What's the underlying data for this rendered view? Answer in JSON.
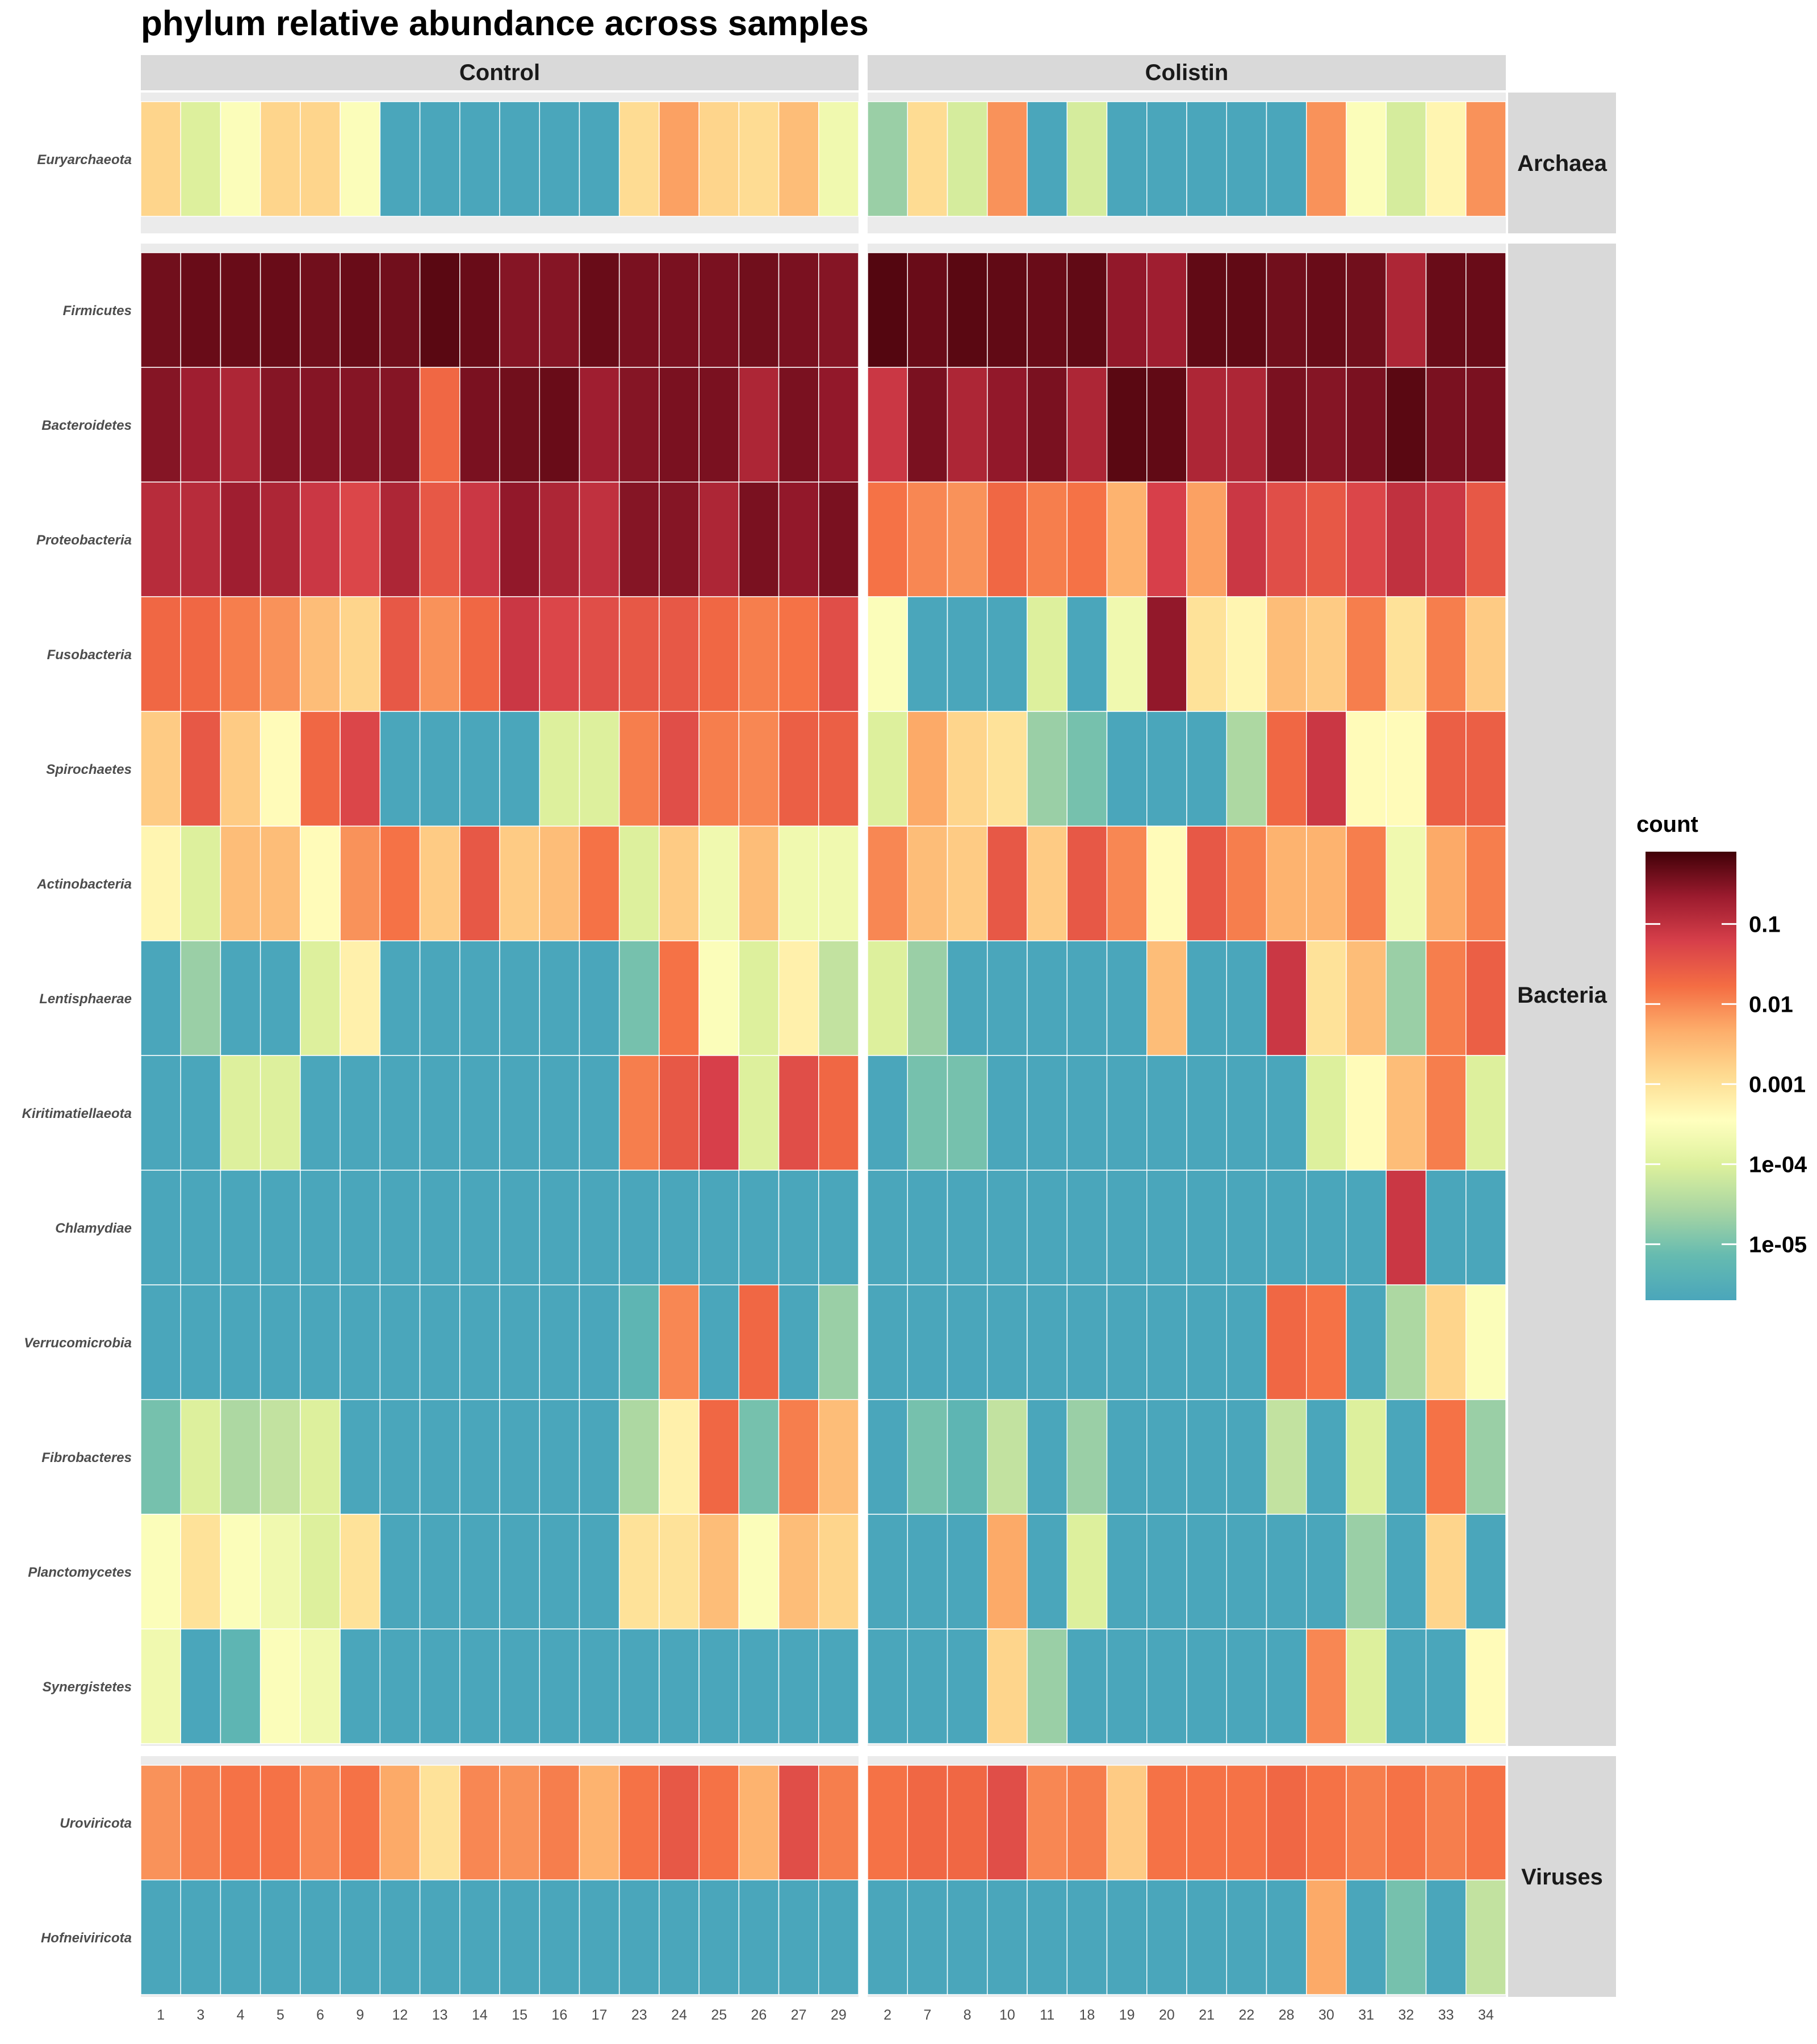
{
  "chart_data": {
    "type": "heatmap",
    "title": "phylum  relative abundance across samples",
    "xlabel": "",
    "ylabel": "",
    "color_scale": {
      "type": "log10",
      "title": "count",
      "tick_labels": [
        "0.1",
        "0.01",
        "0.001",
        "1e-04",
        "1e-05"
      ],
      "tick_values": [
        0.1,
        0.01,
        0.001,
        0.0001,
        1e-05
      ],
      "range": [
        2e-06,
        0.8
      ],
      "colors": [
        "#4aa6bb",
        "#66bbb0",
        "#a8d5a3",
        "#dcf09c",
        "#ffffbe",
        "#fedb91",
        "#fdae6b",
        "#f46d43",
        "#d73f4a",
        "#9b1b2e",
        "#400007"
      ]
    },
    "columns": [
      {
        "label": "Control",
        "samples": [
          "1",
          "3",
          "4",
          "5",
          "6",
          "9",
          "12",
          "13",
          "14",
          "15",
          "16",
          "17",
          "23",
          "24",
          "25",
          "26",
          "27",
          "29"
        ]
      },
      {
        "label": "Colistin",
        "samples": [
          "2",
          "7",
          "8",
          "10",
          "11",
          "18",
          "19",
          "20",
          "21",
          "22",
          "28",
          "30",
          "31",
          "32",
          "33",
          "34"
        ]
      }
    ],
    "rows": [
      {
        "label": "Archaea",
        "taxa": [
          {
            "name": "Euryarchaeota",
            "control": [
              0.0015,
              0.0001,
              0.0003,
              0.0015,
              0.0015,
              0.0003,
              0,
              0,
              0,
              0,
              0,
              0,
              0.0012,
              0.006,
              0.0015,
              0.0012,
              0.003,
              0.0002
            ],
            "colistin": [
              2e-05,
              0.0012,
              8e-05,
              0.008,
              0,
              8e-05,
              0,
              0,
              0,
              0,
              0,
              0.008,
              0.0003,
              8e-05,
              0.0005,
              0.008
            ]
          },
          {
            "name": "Euryarchaeota_pad",
            "skip": true,
            "control": [],
            "colistin": []
          }
        ]
      },
      {
        "label": "Bacteria",
        "taxa": [
          {
            "name": "Firmicutes",
            "control": [
              0.4,
              0.45,
              0.45,
              0.45,
              0.4,
              0.45,
              0.4,
              0.55,
              0.45,
              0.3,
              0.3,
              0.45,
              0.35,
              0.35,
              0.35,
              0.4,
              0.35,
              0.3
            ],
            "colistin": [
              0.6,
              0.45,
              0.55,
              0.5,
              0.45,
              0.5,
              0.25,
              0.2,
              0.5,
              0.5,
              0.4,
              0.45,
              0.4,
              0.15,
              0.45,
              0.45
            ]
          },
          {
            "name": "Bacteroidetes",
            "control": [
              0.3,
              0.2,
              0.15,
              0.3,
              0.3,
              0.3,
              0.3,
              0.02,
              0.35,
              0.4,
              0.45,
              0.2,
              0.3,
              0.35,
              0.35,
              0.15,
              0.35,
              0.25
            ],
            "colistin": [
              0.08,
              0.35,
              0.15,
              0.25,
              0.35,
              0.15,
              0.55,
              0.5,
              0.15,
              0.15,
              0.35,
              0.3,
              0.35,
              0.55,
              0.35,
              0.35
            ]
          },
          {
            "name": "Proteobacteria",
            "control": [
              0.12,
              0.12,
              0.2,
              0.15,
              0.08,
              0.05,
              0.15,
              0.03,
              0.08,
              0.25,
              0.15,
              0.1,
              0.3,
              0.3,
              0.15,
              0.35,
              0.25,
              0.35
            ],
            "colistin": [
              0.015,
              0.01,
              0.008,
              0.02,
              0.012,
              0.015,
              0.004,
              0.06,
              0.006,
              0.08,
              0.04,
              0.03,
              0.05,
              0.1,
              0.08,
              0.03
            ]
          },
          {
            "name": "Fusobacteria",
            "control": [
              0.02,
              0.02,
              0.012,
              0.008,
              0.003,
              0.0015,
              0.03,
              0.008,
              0.02,
              0.08,
              0.05,
              0.04,
              0.03,
              0.03,
              0.02,
              0.012,
              0.015,
              0.04
            ],
            "colistin": [
              0.0003,
              0,
              0,
              0,
              0.0001,
              0,
              0.0002,
              0.25,
              0.001,
              0.0005,
              0.003,
              0.002,
              0.012,
              0.001,
              0.012,
              0.002
            ]
          },
          {
            "name": "Spirochaetes",
            "control": [
              0.002,
              0.03,
              0.002,
              0.0004,
              0.02,
              0.05,
              0,
              0,
              0,
              0,
              0.0001,
              0.0001,
              0.012,
              0.04,
              0.012,
              0.01,
              0.025,
              0.025
            ],
            "colistin": [
              0.0001,
              0.005,
              0.0015,
              0.001,
              2e-05,
              1e-05,
              0,
              0,
              0,
              3e-05,
              0.02,
              0.08,
              0.0004,
              0.0004,
              0.025,
              0.025
            ]
          },
          {
            "name": "Actinobacteria",
            "control": [
              0.0005,
              0.0001,
              0.003,
              0.003,
              0.0004,
              0.008,
              0.015,
              0.002,
              0.03,
              0.002,
              0.003,
              0.015,
              0.0001,
              0.002,
              0.0002,
              0.003,
              0.0002,
              0.0002
            ],
            "colistin": [
              0.01,
              0.003,
              0.002,
              0.03,
              0.002,
              0.03,
              0.01,
              0.0004,
              0.03,
              0.012,
              0.004,
              0.004,
              0.012,
              0.0002,
              0.005,
              0.012
            ]
          },
          {
            "name": "Lentisphaerae",
            "control": [
              0,
              2e-05,
              0,
              0,
              0.0001,
              0.0006,
              0,
              0,
              0,
              0,
              0,
              0,
              1e-05,
              0.015,
              0.0003,
              0.0001,
              0.0006,
              5e-05
            ],
            "colistin": [
              0.0001,
              2e-05,
              0,
              0,
              0,
              0,
              0,
              0.003,
              0,
              0,
              0.08,
              0.001,
              0.003,
              2e-05,
              0.012,
              0.025
            ]
          },
          {
            "name": "Kiritimatiellaeota",
            "control": [
              0,
              0,
              0.0001,
              0.0001,
              0,
              0,
              0,
              0,
              0,
              0,
              0,
              0,
              0.012,
              0.03,
              0.06,
              0.0001,
              0.04,
              0.02
            ],
            "colistin": [
              0,
              1e-05,
              1e-05,
              0,
              0,
              0,
              0,
              0,
              0,
              0,
              0,
              0.0001,
              0.0004,
              0.003,
              0.012,
              0.0001
            ]
          },
          {
            "name": "Chlamydiae",
            "control": [
              0,
              0,
              0,
              0,
              0,
              0,
              0,
              0,
              0,
              0,
              0,
              0,
              0,
              0,
              0,
              0,
              0,
              0
            ],
            "colistin": [
              0,
              0,
              0,
              0,
              0,
              0,
              0,
              0,
              0,
              0,
              0,
              0,
              0,
              0.08,
              0,
              0
            ]
          },
          {
            "name": "Verrucomicrobia",
            "control": [
              0,
              0,
              0,
              0,
              0,
              0,
              0,
              0,
              0,
              0,
              0,
              0,
              5e-06,
              0.01,
              0,
              0.02,
              0,
              2e-05
            ],
            "colistin": [
              0,
              0,
              0,
              0,
              0,
              0,
              0,
              0,
              0,
              0,
              0.02,
              0.015,
              0,
              3e-05,
              0.0015,
              0.0003
            ]
          },
          {
            "name": "Fibrobacteres",
            "control": [
              1e-05,
              0.0001,
              3e-05,
              5e-05,
              0.0001,
              0,
              0,
              0,
              0,
              0,
              0,
              0,
              3e-05,
              0.0006,
              0.02,
              1e-05,
              0.012,
              0.003
            ],
            "colistin": [
              0,
              1e-05,
              5e-06,
              5e-05,
              0,
              2e-05,
              0,
              0,
              0,
              0,
              5e-05,
              0,
              0.0001,
              0,
              0.015,
              2e-05
            ]
          },
          {
            "name": "Planctomycetes",
            "control": [
              0.0003,
              0.001,
              0.0003,
              0.0002,
              0.0001,
              0.001,
              0,
              0,
              0,
              0,
              0,
              0,
              0.001,
              0.001,
              0.003,
              0.0003,
              0.003,
              0.0015
            ],
            "colistin": [
              0,
              0,
              0,
              0.005,
              0,
              0.0001,
              0,
              0,
              0,
              0,
              0,
              0,
              2e-05,
              0,
              0.0015,
              0
            ]
          },
          {
            "name": "Synergistetes",
            "control": [
              0.0002,
              0,
              5e-06,
              0.0003,
              0.0002,
              0,
              0,
              0,
              0,
              0,
              0,
              0,
              0,
              0,
              0,
              0,
              0,
              0
            ],
            "colistin": [
              0,
              0,
              0,
              0.0015,
              2e-05,
              0,
              0,
              0,
              0,
              0,
              0,
              0.01,
              0.0001,
              0,
              0,
              0.0004
            ]
          }
        ]
      },
      {
        "label": "Viruses",
        "taxa": [
          {
            "name": "Uroviricota",
            "control": [
              0.008,
              0.012,
              0.015,
              0.015,
              0.01,
              0.015,
              0.005,
              0.001,
              0.01,
              0.008,
              0.012,
              0.004,
              0.015,
              0.03,
              0.015,
              0.004,
              0.04,
              0.012
            ],
            "colistin": [
              0.015,
              0.02,
              0.02,
              0.04,
              0.01,
              0.012,
              0.002,
              0.015,
              0.015,
              0.015,
              0.02,
              0.015,
              0.012,
              0.015,
              0.012,
              0.015
            ]
          },
          {
            "name": "Hofneiviricota",
            "control": [
              0,
              0,
              0,
              0,
              0,
              0,
              0,
              0,
              0,
              0,
              0,
              0,
              0,
              0,
              0,
              0,
              0,
              0
            ],
            "colistin": [
              0,
              0,
              0,
              0,
              0,
              0,
              0,
              0,
              0,
              0,
              0,
              0.005,
              0,
              1e-05,
              0,
              5e-05
            ]
          }
        ]
      }
    ]
  }
}
